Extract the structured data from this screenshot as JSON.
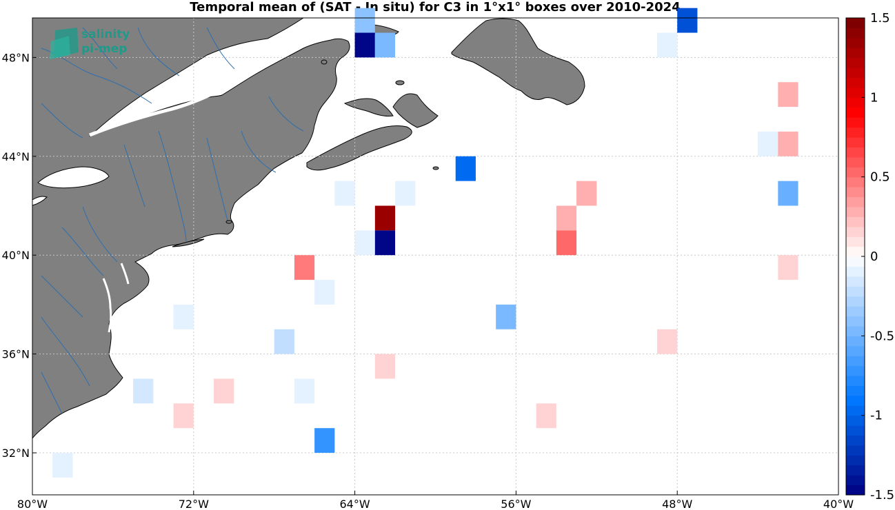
{
  "title": "Temporal mean of (SAT - In situ) for C3 in 1°x1° boxes over 2010-2024",
  "logo": {
    "line1": "salinity",
    "line2": "pi-mep"
  },
  "axes": {
    "lon_range": [
      -80,
      -40
    ],
    "lat_range": [
      30.3,
      49.6
    ],
    "x_ticks": [
      {
        "value": -80,
        "label": "80°W"
      },
      {
        "value": -72,
        "label": "72°W"
      },
      {
        "value": -64,
        "label": "64°W"
      },
      {
        "value": -56,
        "label": "56°W"
      },
      {
        "value": -48,
        "label": "48°W"
      },
      {
        "value": -40,
        "label": "40°W"
      }
    ],
    "y_ticks": [
      {
        "value": 32,
        "label": "32°N"
      },
      {
        "value": 36,
        "label": "36°N"
      },
      {
        "value": 40,
        "label": "40°N"
      },
      {
        "value": 44,
        "label": "44°N"
      },
      {
        "value": 48,
        "label": "48°N"
      }
    ],
    "grid": true
  },
  "colorbar": {
    "range": [
      -1.5,
      1.5
    ],
    "steps": 48,
    "ticks": [
      {
        "value": 1.5,
        "label": "1.5"
      },
      {
        "value": 1,
        "label": "1"
      },
      {
        "value": 0.5,
        "label": "0.5"
      },
      {
        "value": 0,
        "label": "0"
      },
      {
        "value": -0.5,
        "label": "-0.5"
      },
      {
        "value": -1,
        "label": "-1"
      },
      {
        "value": -1.5,
        "label": "-1.5"
      }
    ]
  },
  "colors": {
    "land": "#808080",
    "land_edge": "#000000",
    "rivers": "#2c6fae",
    "ocean": "#ffffff",
    "grid": "#c8c8c8"
  },
  "chart_data": {
    "type": "heatmap",
    "cell_size_deg": 1,
    "cells": [
      {
        "lon": -63.5,
        "lat": 49.5,
        "value": -0.4
      },
      {
        "lon": -63.5,
        "lat": 48.5,
        "value": -1.5
      },
      {
        "lon": -62.5,
        "lat": 48.5,
        "value": -0.5
      },
      {
        "lon": -48.5,
        "lat": 48.5,
        "value": -0.1
      },
      {
        "lon": -47.5,
        "lat": 49.5,
        "value": -1.1
      },
      {
        "lon": -42.5,
        "lat": 46.5,
        "value": 0.25
      },
      {
        "lon": -43.5,
        "lat": 44.5,
        "value": -0.1
      },
      {
        "lon": -42.5,
        "lat": 44.5,
        "value": 0.3
      },
      {
        "lon": -58.5,
        "lat": 43.5,
        "value": -1.0
      },
      {
        "lon": -64.5,
        "lat": 42.5,
        "value": -0.1
      },
      {
        "lon": -61.5,
        "lat": 42.5,
        "value": -0.1
      },
      {
        "lon": -52.5,
        "lat": 42.5,
        "value": 0.25
      },
      {
        "lon": -42.5,
        "lat": 42.5,
        "value": -0.55
      },
      {
        "lon": -62.5,
        "lat": 41.5,
        "value": 1.35
      },
      {
        "lon": -53.5,
        "lat": 41.5,
        "value": 0.3
      },
      {
        "lon": -63.5,
        "lat": 40.5,
        "value": -0.1
      },
      {
        "lon": -62.5,
        "lat": 40.5,
        "value": -1.5
      },
      {
        "lon": -53.5,
        "lat": 40.5,
        "value": 0.55
      },
      {
        "lon": -66.5,
        "lat": 39.5,
        "value": 0.45
      },
      {
        "lon": -42.5,
        "lat": 39.5,
        "value": 0.15
      },
      {
        "lon": -65.5,
        "lat": 38.5,
        "value": -0.1
      },
      {
        "lon": -72.5,
        "lat": 37.5,
        "value": -0.1
      },
      {
        "lon": -56.5,
        "lat": 37.5,
        "value": -0.45
      },
      {
        "lon": -67.5,
        "lat": 36.5,
        "value": -0.25
      },
      {
        "lon": -48.5,
        "lat": 36.5,
        "value": 0.15
      },
      {
        "lon": -62.5,
        "lat": 35.5,
        "value": 0.15
      },
      {
        "lon": -74.5,
        "lat": 34.5,
        "value": -0.15
      },
      {
        "lon": -70.5,
        "lat": 34.5,
        "value": 0.15
      },
      {
        "lon": -66.5,
        "lat": 34.5,
        "value": -0.1
      },
      {
        "lon": -72.5,
        "lat": 33.5,
        "value": 0.15
      },
      {
        "lon": -54.5,
        "lat": 33.5,
        "value": 0.15
      },
      {
        "lon": -65.5,
        "lat": 32.5,
        "value": -0.7
      },
      {
        "lon": -78.5,
        "lat": 31.5,
        "value": -0.1
      }
    ]
  }
}
